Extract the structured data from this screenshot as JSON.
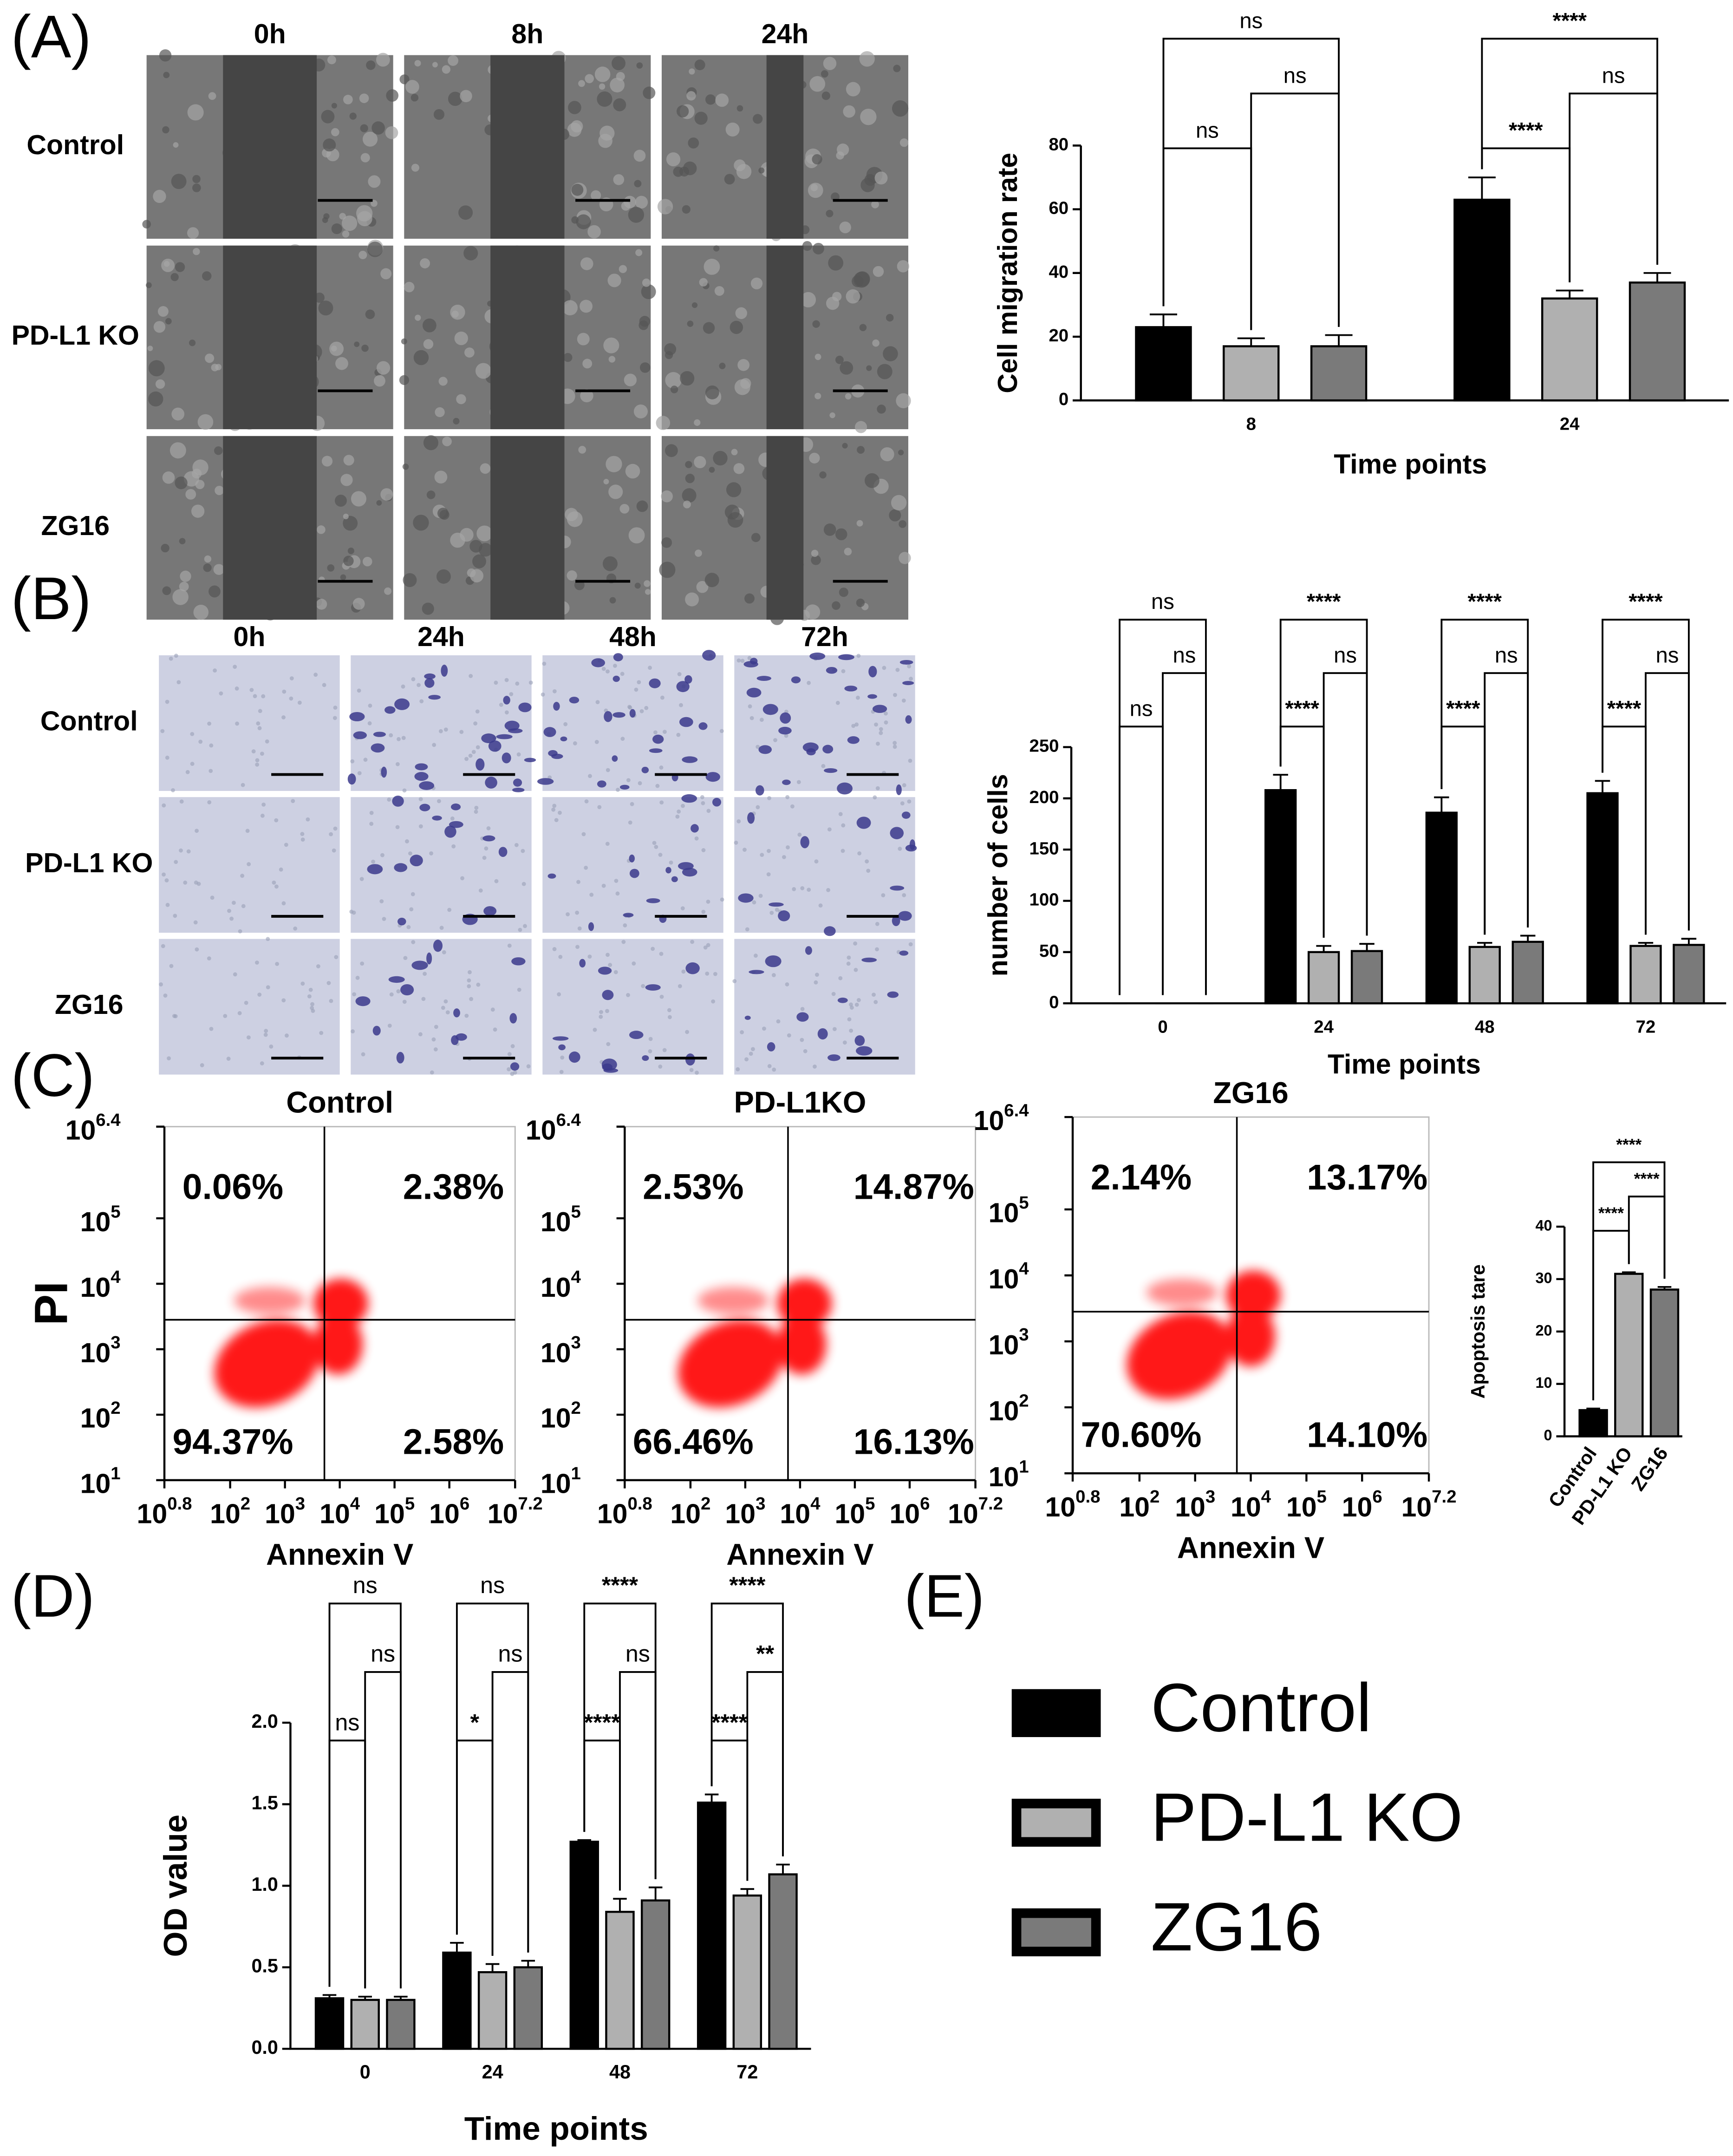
{
  "panel_labels": [
    "(A)",
    "(B)",
    "(C)",
    "(D)",
    "(E)"
  ],
  "image_grids": [
    {
      "columns": [
        "0h",
        "8h",
        "24h"
      ],
      "rows": [
        "Control",
        "PD-L1 KO",
        "ZG16"
      ]
    },
    {
      "columns": [
        "0h",
        "24h",
        "48h",
        "72h"
      ],
      "rows": [
        "Control",
        "PD-L1 KO",
        "ZG16"
      ]
    }
  ],
  "chart_data": [
    {
      "type": "bar",
      "ylabel": "Cell migration rate",
      "xlabel": "Time points",
      "categories": [
        "8",
        "24"
      ],
      "series": [
        {
          "name": "Control",
          "color": "#000000",
          "values": [
            23,
            63
          ],
          "errors": [
            4,
            7
          ]
        },
        {
          "name": "PD-L1 KO",
          "color": "#b0b0b0",
          "values": [
            17,
            32
          ],
          "errors": [
            2.5,
            2.5
          ]
        },
        {
          "name": "ZG16",
          "color": "#7a7a7a",
          "values": [
            17,
            37
          ],
          "errors": [
            3.5,
            3
          ]
        }
      ],
      "ylim": [
        0,
        80
      ],
      "yticks": [
        0,
        20,
        40,
        60,
        80
      ],
      "comparisons": [
        {
          "category": "8",
          "pair": [
            "Control",
            "PD-L1 KO"
          ],
          "label": "ns"
        },
        {
          "category": "8",
          "pair": [
            "PD-L1 KO",
            "ZG16"
          ],
          "label": "ns"
        },
        {
          "category": "8",
          "pair": [
            "Control",
            "ZG16"
          ],
          "label": "ns"
        },
        {
          "category": "24",
          "pair": [
            "Control",
            "PD-L1 KO"
          ],
          "label": "****"
        },
        {
          "category": "24",
          "pair": [
            "PD-L1 KO",
            "ZG16"
          ],
          "label": "ns"
        },
        {
          "category": "24",
          "pair": [
            "Control",
            "ZG16"
          ],
          "label": "****"
        }
      ]
    },
    {
      "type": "bar",
      "ylabel": "number of cells",
      "xlabel": "Time points",
      "categories": [
        "0",
        "24",
        "48",
        "72"
      ],
      "series": [
        {
          "name": "Control",
          "color": "#000000",
          "values": [
            0,
            208,
            186,
            205
          ],
          "errors": [
            0,
            15,
            15,
            12
          ]
        },
        {
          "name": "PD-L1 KO",
          "color": "#b0b0b0",
          "values": [
            0,
            50,
            55,
            56
          ],
          "errors": [
            0,
            6,
            4,
            3
          ]
        },
        {
          "name": "ZG16",
          "color": "#7a7a7a",
          "values": [
            0,
            51,
            60,
            57
          ],
          "errors": [
            0,
            7,
            6,
            6
          ]
        }
      ],
      "ylim": [
        0,
        250
      ],
      "yticks": [
        0,
        50,
        100,
        150,
        200,
        250
      ],
      "comparisons": [
        {
          "category": "0",
          "pair": [
            "Control",
            "PD-L1 KO"
          ],
          "label": "ns"
        },
        {
          "category": "0",
          "pair": [
            "PD-L1 KO",
            "ZG16"
          ],
          "label": "ns"
        },
        {
          "category": "0",
          "pair": [
            "Control",
            "ZG16"
          ],
          "label": "ns"
        },
        {
          "category": "24",
          "pair": [
            "Control",
            "PD-L1 KO"
          ],
          "label": "****"
        },
        {
          "category": "24",
          "pair": [
            "PD-L1 KO",
            "ZG16"
          ],
          "label": "ns"
        },
        {
          "category": "24",
          "pair": [
            "Control",
            "ZG16"
          ],
          "label": "****"
        },
        {
          "category": "48",
          "pair": [
            "Control",
            "PD-L1 KO"
          ],
          "label": "****"
        },
        {
          "category": "48",
          "pair": [
            "PD-L1 KO",
            "ZG16"
          ],
          "label": "ns"
        },
        {
          "category": "48",
          "pair": [
            "Control",
            "ZG16"
          ],
          "label": "****"
        },
        {
          "category": "72",
          "pair": [
            "Control",
            "PD-L1 KO"
          ],
          "label": "****"
        },
        {
          "category": "72",
          "pair": [
            "PD-L1 KO",
            "ZG16"
          ],
          "label": "ns"
        },
        {
          "category": "72",
          "pair": [
            "Control",
            "ZG16"
          ],
          "label": "****"
        }
      ]
    },
    {
      "type": "scatter",
      "title": "Control",
      "xlabel": "Annexin V",
      "ylabel": "PI",
      "color": "#ff0000",
      "log_scale": true,
      "tick_base": "10",
      "xlim": [
        0.8,
        7.2
      ],
      "xticks": [
        0.8,
        2,
        3,
        4,
        5,
        6,
        7.2
      ],
      "ylim": [
        1,
        6.4
      ],
      "yticks": [
        1,
        2,
        3,
        4,
        5,
        6.4
      ],
      "x_gate": 3.72,
      "y_gate": 3.45,
      "quadrant_labels": [
        "0.06%",
        "2.38%",
        "94.37%",
        "2.58%"
      ]
    },
    {
      "type": "scatter",
      "title": "PD-L1KO",
      "xlabel": "Annexin V",
      "color": "#ff0000",
      "log_scale": true,
      "tick_base": "10",
      "xlim": [
        0.8,
        7.2
      ],
      "xticks": [
        0.8,
        2,
        3,
        4,
        5,
        6,
        7.2
      ],
      "ylim": [
        1,
        6.4
      ],
      "yticks": [
        1,
        2,
        3,
        4,
        5,
        6.4
      ],
      "x_gate": 3.78,
      "y_gate": 3.45,
      "quadrant_labels": [
        "2.53%",
        "14.87%",
        "66.46%",
        "16.13%"
      ]
    },
    {
      "type": "scatter",
      "title": "ZG16",
      "xlabel": "Annexin V",
      "color": "#ff0000",
      "log_scale": true,
      "tick_base": "10",
      "xlim": [
        0.8,
        7.2
      ],
      "xticks": [
        0.8,
        2,
        3,
        4,
        5,
        6,
        7.2
      ],
      "ylim": [
        1,
        6.4
      ],
      "yticks": [
        1,
        2,
        3,
        4,
        5,
        6.4
      ],
      "x_gate": 3.75,
      "y_gate": 3.45,
      "quadrant_labels": [
        "2.14%",
        "13.17%",
        "70.60%",
        "14.10%"
      ]
    },
    {
      "type": "bar",
      "ylabel": "Apoptosis tare",
      "categories": [
        "Control",
        "PD-L1 KO",
        "ZG16"
      ],
      "values": [
        5,
        31,
        28
      ],
      "errors": [
        0.3,
        0.3,
        0.5
      ],
      "colors": [
        "#000000",
        "#b0b0b0",
        "#7a7a7a"
      ],
      "ylim": [
        0,
        40
      ],
      "yticks": [
        0,
        10,
        20,
        30,
        40
      ],
      "comparisons": [
        {
          "pair": [
            "Control",
            "PD-L1 KO"
          ],
          "label": "****"
        },
        {
          "pair": [
            "PD-L1 KO",
            "ZG16"
          ],
          "label": "****"
        },
        {
          "pair": [
            "Control",
            "ZG16"
          ],
          "label": "****"
        }
      ]
    },
    {
      "type": "bar",
      "ylabel": "OD value",
      "xlabel": "Time points",
      "categories": [
        "0",
        "24",
        "48",
        "72"
      ],
      "series": [
        {
          "name": "Control",
          "color": "#000000",
          "values": [
            0.31,
            0.59,
            1.27,
            1.51
          ],
          "errors": [
            0.02,
            0.06,
            0.01,
            0.05
          ]
        },
        {
          "name": "PD-L1 KO",
          "color": "#b0b0b0",
          "values": [
            0.3,
            0.47,
            0.84,
            0.94
          ],
          "errors": [
            0.02,
            0.05,
            0.08,
            0.04
          ]
        },
        {
          "name": "ZG16",
          "color": "#7a7a7a",
          "values": [
            0.3,
            0.5,
            0.91,
            1.07
          ],
          "errors": [
            0.02,
            0.04,
            0.08,
            0.06
          ]
        }
      ],
      "ylim": [
        0,
        2
      ],
      "yticks": [
        {
          "value": 0,
          "label": "0.0"
        },
        0.5,
        {
          "value": 1,
          "label": "1.0"
        },
        1.5,
        {
          "value": 2,
          "label": "2.0"
        }
      ],
      "comparisons": [
        {
          "category": "0",
          "pair": [
            "Control",
            "PD-L1 KO"
          ],
          "label": "ns"
        },
        {
          "category": "0",
          "pair": [
            "PD-L1 KO",
            "ZG16"
          ],
          "label": "ns"
        },
        {
          "category": "0",
          "pair": [
            "Control",
            "ZG16"
          ],
          "label": "ns"
        },
        {
          "category": "24",
          "pair": [
            "Control",
            "PD-L1 KO"
          ],
          "label": "*"
        },
        {
          "category": "24",
          "pair": [
            "PD-L1 KO",
            "ZG16"
          ],
          "label": "ns"
        },
        {
          "category": "24",
          "pair": [
            "Control",
            "ZG16"
          ],
          "label": "ns"
        },
        {
          "category": "48",
          "pair": [
            "Control",
            "PD-L1 KO"
          ],
          "label": "****"
        },
        {
          "category": "48",
          "pair": [
            "PD-L1 KO",
            "ZG16"
          ],
          "label": "ns"
        },
        {
          "category": "48",
          "pair": [
            "Control",
            "ZG16"
          ],
          "label": "****"
        },
        {
          "category": "72",
          "pair": [
            "Control",
            "PD-L1 KO"
          ],
          "label": "****"
        },
        {
          "category": "72",
          "pair": [
            "PD-L1 KO",
            "ZG16"
          ],
          "label": "**"
        },
        {
          "category": "72",
          "pair": [
            "Control",
            "ZG16"
          ],
          "label": "****"
        }
      ]
    }
  ]
}
